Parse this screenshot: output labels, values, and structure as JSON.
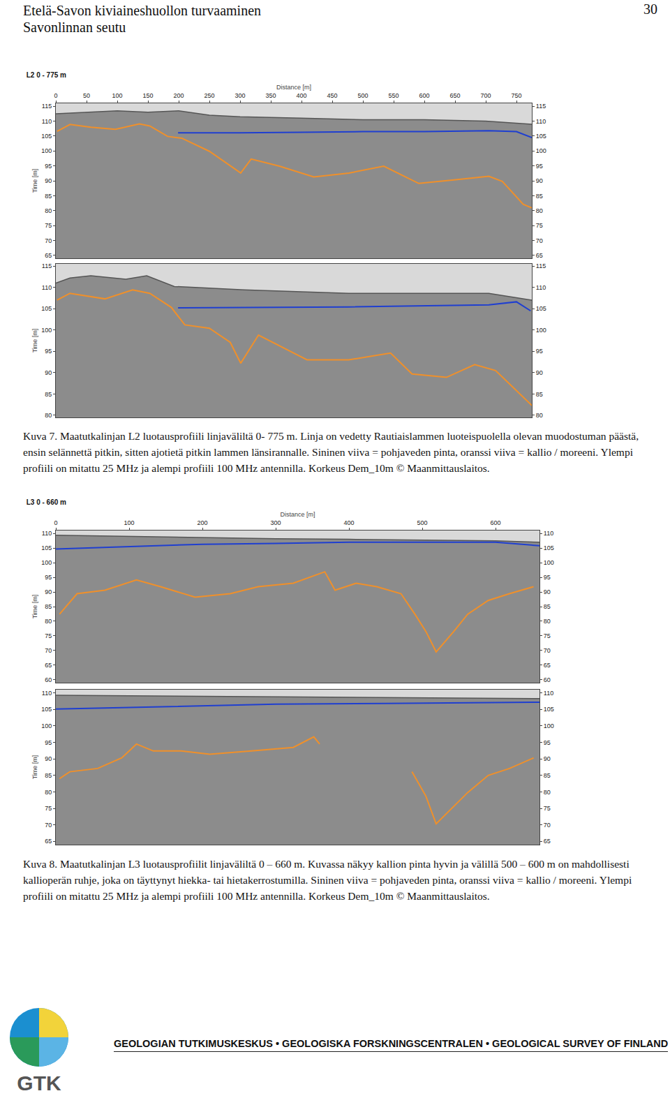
{
  "header": {
    "title": "Etelä-Savon kiviaineshuollon turvaaminen",
    "subtitle": "Savonlinnan seutu",
    "page": "30"
  },
  "chart_data": [
    {
      "type": "line",
      "title": "L2 0 - 775 m",
      "x_label": "Distance [m]",
      "y_label": "Time [m]",
      "xlim": [
        0,
        775
      ],
      "xticks": [
        0,
        50,
        100,
        150,
        200,
        250,
        300,
        350,
        400,
        450,
        500,
        550,
        600,
        650,
        700,
        750
      ],
      "ylim": [
        64,
        116
      ],
      "yticks": [
        65,
        70,
        75,
        80,
        85,
        90,
        95,
        100,
        105,
        110,
        115
      ],
      "grid": false,
      "tick_labels": true,
      "series": [
        {
          "type": "area",
          "color": "#8c8c8c",
          "x": [
            0,
            50,
            100,
            150,
            200,
            250,
            300,
            400,
            500,
            600,
            700,
            775
          ],
          "values": [
            112.5,
            113,
            113.5,
            113,
            113.5,
            112,
            111.5,
            111,
            110.5,
            110.5,
            110,
            109
          ]
        },
        {
          "type": "line",
          "color": "#1f3fd0",
          "x": [
            199,
            300,
            400,
            500,
            600,
            705,
            750,
            775
          ],
          "values": [
            106.1,
            106.1,
            106.3,
            106.5,
            106.5,
            106.8,
            106.5,
            104.5
          ]
        },
        {
          "type": "line",
          "color": "#f0902a",
          "x": [
            2,
            23,
            57,
            97,
            136,
            153,
            182,
            205,
            250,
            301,
            318,
            364,
            420,
            477,
            534,
            568,
            591,
            648,
            705,
            727,
            761,
            775
          ],
          "values": [
            106.6,
            108.9,
            108,
            107.3,
            109.1,
            108.4,
            104.9,
            104.3,
            99.9,
            92.6,
            97.3,
            94.9,
            91.3,
            92.6,
            94.9,
            91.5,
            89.1,
            90.3,
            91.5,
            89.8,
            82.1,
            80.9
          ]
        }
      ]
    },
    {
      "type": "line",
      "y_label": "Time [m]",
      "xlim": [
        0,
        775
      ],
      "xticks": [
        0,
        50,
        100,
        150,
        200,
        250,
        300,
        350,
        400,
        450,
        500,
        550,
        600,
        650,
        700,
        750
      ],
      "ylim": [
        79.5,
        115.5
      ],
      "yticks": [
        80,
        85,
        90,
        95,
        100,
        105,
        110,
        115
      ],
      "grid": false,
      "tick_labels": "y",
      "series": [
        {
          "type": "area",
          "color": "#8c8c8c",
          "x": [
            0,
            23,
            57,
            114,
            148,
            193,
            307,
            477,
            705,
            775
          ],
          "values": [
            111,
            112.2,
            112.7,
            111.9,
            112.7,
            110.2,
            109.4,
            108.6,
            108.6,
            107
          ]
        },
        {
          "type": "line",
          "color": "#1f3fd0",
          "x": [
            199,
            477,
            705,
            750,
            773
          ],
          "values": [
            105.2,
            105.4,
            105.9,
            106.6,
            104.5
          ]
        },
        {
          "type": "line",
          "color": "#f0902a",
          "x": [
            2,
            23,
            80,
            125,
            153,
            188,
            210,
            250,
            284,
            301,
            330,
            364,
            409,
            477,
            545,
            580,
            636,
            682,
            716,
            739,
            775
          ],
          "values": [
            107,
            108.6,
            107.3,
            109.4,
            108.6,
            105.3,
            101.2,
            100.4,
            97.1,
            92.2,
            98.8,
            96.3,
            93,
            93,
            94.6,
            89.7,
            88.9,
            91.9,
            90.5,
            87.3,
            82.3
          ]
        }
      ]
    },
    {
      "type": "line",
      "title": "L3 0 - 660 m",
      "x_label": "Distance [m]",
      "y_label": "Time [m]",
      "xlim": [
        0,
        660
      ],
      "xticks": [
        0,
        100,
        200,
        300,
        400,
        500,
        600
      ],
      "ylim": [
        59,
        111
      ],
      "yticks": [
        60,
        65,
        70,
        75,
        80,
        85,
        90,
        95,
        100,
        105,
        110
      ],
      "grid": false,
      "tick_labels": true,
      "series": [
        {
          "type": "area",
          "color": "#8c8c8c",
          "x": [
            0,
            100,
            200,
            300,
            400,
            500,
            600,
            660
          ],
          "values": [
            109.4,
            109,
            108.6,
            108.2,
            108,
            107.8,
            107.5,
            107
          ]
        },
        {
          "type": "line",
          "color": "#1f3fd0",
          "x": [
            0,
            100,
            200,
            300,
            400,
            500,
            600,
            660
          ],
          "values": [
            104.7,
            105.5,
            106.3,
            106.6,
            107,
            107,
            107,
            105.8
          ]
        },
        {
          "type": "line",
          "color": "#f0902a",
          "x": [
            5,
            29,
            67,
            110,
            143,
            190,
            238,
            276,
            324,
            367,
            381,
            410,
            438,
            471,
            490,
            505,
            519,
            543,
            562,
            590,
            619,
            652
          ],
          "values": [
            82.4,
            89.4,
            90.6,
            94.1,
            91.8,
            88.2,
            89.4,
            91.8,
            93,
            96.9,
            90.6,
            93,
            91.8,
            89.4,
            82.4,
            76.5,
            69.5,
            76.5,
            82.4,
            87.1,
            89.4,
            91.8
          ]
        }
      ]
    },
    {
      "type": "line",
      "y_label": "Time [m]",
      "xlim": [
        0,
        660
      ],
      "xticks": [
        0,
        100,
        200,
        300,
        400,
        500,
        600
      ],
      "ylim": [
        64,
        111
      ],
      "yticks": [
        65,
        70,
        75,
        80,
        85,
        90,
        95,
        100,
        105,
        110
      ],
      "grid": false,
      "tick_labels": "y",
      "series": [
        {
          "type": "area",
          "color": "#8c8c8c",
          "x": [
            0,
            200,
            400,
            660
          ],
          "values": [
            109.3,
            109,
            108.7,
            108.3
          ]
        },
        {
          "type": "line",
          "color": "#1f3fd0",
          "x": [
            0,
            150,
            300,
            450,
            600,
            660
          ],
          "values": [
            105.1,
            105.9,
            106.6,
            106.8,
            107,
            107.2
          ]
        },
        {
          "type": "line",
          "color": "#f0902a",
          "x": [
            5,
            19,
            57,
            90,
            110,
            133,
            171,
            210,
            267,
            324,
            352,
            360,
            420,
            486,
            505,
            519,
            533,
            562,
            590,
            619,
            652
          ],
          "values": [
            84,
            86.1,
            87.1,
            90.3,
            94.5,
            92.4,
            92.4,
            91.4,
            92.4,
            93.5,
            96.7,
            94.5,
            null,
            86.1,
            78.7,
            70.3,
            73.4,
            79.8,
            85,
            87.1,
            90.3
          ]
        }
      ]
    }
  ],
  "captions": [
    "Kuva 7. Maatutkalinjan L2 luotausprofiili linjaväliltä 0- 775 m. Linja on vedetty Rautiaislammen luoteispuolella olevan muodostuman päästä, ensin selännettä pitkin, sitten ajotietä pitkin lammen länsirannalle. Sininen viiva = pohjaveden pinta, oranssi viiva = kallio / moreeni. Ylempi profiili on mitattu 25 MHz ja alempi profiili 100 MHz antennilla. Korkeus Dem_10m © Maanmittauslaitos.",
    "Kuva 8. Maatutkalinjan L3 luotausprofiilit linjaväliltä 0 – 660 m. Kuvassa näkyy kallion pinta hyvin ja välillä 500 – 600 m on mahdollisesti kallioperän ruhje, joka on täyttynyt hiekka- tai hietakerrostumilla. Sininen viiva = pohjaveden pinta, oranssi viiva = kallio / moreeni. Ylempi profiili on mitattu 25 MHz ja alempi profiili 100 MHz antennilla. Korkeus Dem_10m © Maanmittauslaitos."
  ],
  "footer": {
    "logo": "GTK",
    "text": "GEOLOGIAN TUTKIMUSKESKUS • GEOLOGISKA FORSKNINGSCENTRALEN • GEOLOGICAL SURVEY OF FINLAND"
  }
}
